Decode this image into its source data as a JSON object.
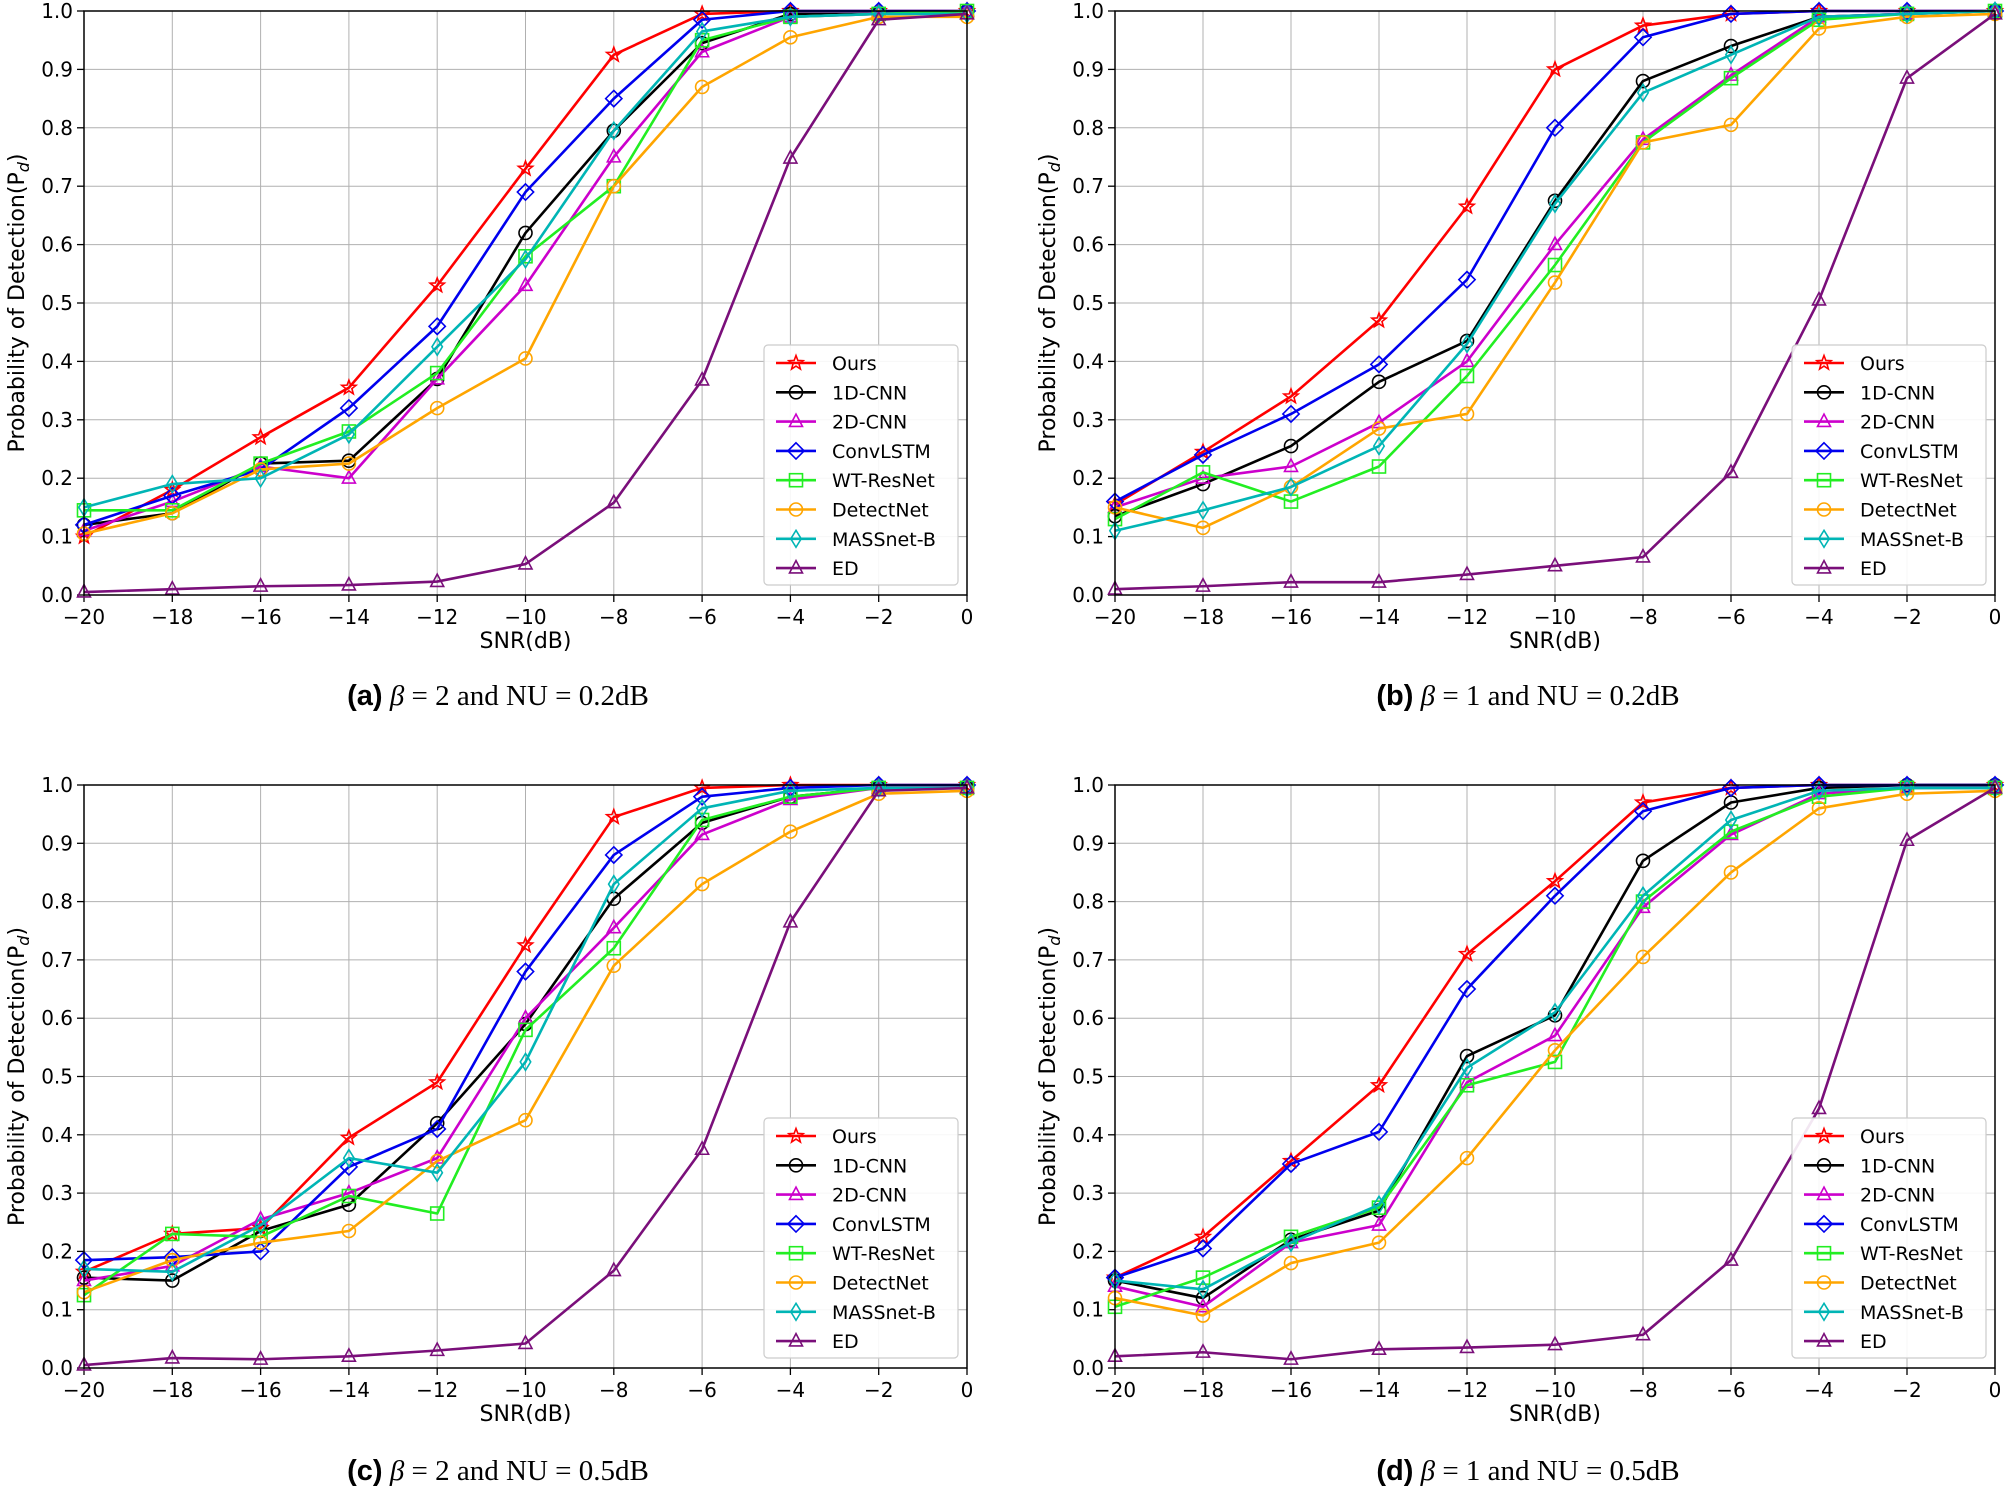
{
  "captions": [
    {
      "label": "(a)",
      "symbol": "β",
      "rest": "= 2 and NU = 0.2dB"
    },
    {
      "label": "(b)",
      "symbol": "β",
      "rest": "= 1 and NU = 0.2dB"
    },
    {
      "label": "(c)",
      "symbol": "β",
      "rest": "= 2 and NU = 0.5dB"
    },
    {
      "label": "(d)",
      "symbol": "β",
      "rest": "= 1 and NU = 0.5dB"
    }
  ],
  "series_styles": [
    {
      "name": "Ours",
      "color": "#ff0000",
      "marker": "star"
    },
    {
      "name": "1D-CNN",
      "color": "#000000",
      "marker": "circle"
    },
    {
      "name": "2D-CNN",
      "color": "#cc00cc",
      "marker": "triangle"
    },
    {
      "name": "ConvLSTM",
      "color": "#0000ee",
      "marker": "diamond"
    },
    {
      "name": "WT-ResNet",
      "color": "#22ee22",
      "marker": "square"
    },
    {
      "name": "DetectNet",
      "color": "#ffa500",
      "marker": "circle"
    },
    {
      "name": "MASSnet-B",
      "color": "#00b5b5",
      "marker": "thin-diamond"
    },
    {
      "name": "ED",
      "color": "#7a0f7a",
      "marker": "triangle"
    }
  ],
  "chart_data": [
    {
      "type": "line",
      "title": "",
      "xlabel": "SNR(dB)",
      "ylabel": "Probability of Detection(P_d)",
      "ylabel_main": "Probability of Detection(P",
      "ylabel_sub": "d",
      "ylabel_close": ")",
      "xlim": [
        -20,
        0
      ],
      "ylim": [
        0.0,
        1.0
      ],
      "xticks": [
        "−20",
        "−18",
        "−16",
        "−14",
        "−12",
        "−10",
        "−8",
        "−6",
        "−4",
        "−2",
        "0"
      ],
      "yticks": [
        "0.0",
        "0.1",
        "0.2",
        "0.3",
        "0.4",
        "0.5",
        "0.6",
        "0.7",
        "0.8",
        "0.9",
        "1.0"
      ],
      "grid": true,
      "legend": "lower-right",
      "x": [
        -20,
        -18,
        -16,
        -14,
        -12,
        -10,
        -8,
        -6,
        -4,
        -2,
        0
      ],
      "series": [
        {
          "name": "Ours",
          "values": [
            0.1,
            0.18,
            0.27,
            0.355,
            0.53,
            0.73,
            0.925,
            0.995,
            1.0,
            1.0,
            1.0
          ]
        },
        {
          "name": "1D-CNN",
          "values": [
            0.12,
            0.14,
            0.225,
            0.23,
            0.37,
            0.62,
            0.795,
            0.945,
            0.995,
            0.995,
            1.0
          ]
        },
        {
          "name": "2D-CNN",
          "values": [
            0.11,
            0.16,
            0.22,
            0.2,
            0.37,
            0.53,
            0.75,
            0.93,
            0.99,
            0.995,
            1.0
          ]
        },
        {
          "name": "ConvLSTM",
          "values": [
            0.12,
            0.17,
            0.215,
            0.32,
            0.46,
            0.69,
            0.85,
            0.985,
            1.0,
            1.0,
            1.0
          ]
        },
        {
          "name": "WT-ResNet",
          "values": [
            0.145,
            0.145,
            0.225,
            0.28,
            0.38,
            0.58,
            0.7,
            0.95,
            0.99,
            0.995,
            1.0
          ]
        },
        {
          "name": "DetectNet",
          "values": [
            0.105,
            0.14,
            0.215,
            0.225,
            0.32,
            0.405,
            0.7,
            0.87,
            0.955,
            0.99,
            0.99
          ]
        },
        {
          "name": "MASSnet-B",
          "values": [
            0.15,
            0.19,
            0.2,
            0.275,
            0.425,
            0.575,
            0.795,
            0.965,
            0.99,
            0.995,
            0.995
          ]
        },
        {
          "name": "ED",
          "values": [
            0.005,
            0.01,
            0.015,
            0.017,
            0.023,
            0.053,
            0.158,
            0.368,
            0.748,
            0.985,
            0.995
          ]
        }
      ]
    },
    {
      "type": "line",
      "title": "",
      "xlabel": "SNR(dB)",
      "ylabel": "Probability of Detection(P_d)",
      "ylabel_main": "Probability of Detection(P",
      "ylabel_sub": "d",
      "ylabel_close": ")",
      "xlim": [
        -20,
        0
      ],
      "ylim": [
        0.0,
        1.0
      ],
      "xticks": [
        "−20",
        "−18",
        "−16",
        "−14",
        "−12",
        "−10",
        "−8",
        "−6",
        "−4",
        "−2",
        "0"
      ],
      "yticks": [
        "0.0",
        "0.1",
        "0.2",
        "0.3",
        "0.4",
        "0.5",
        "0.6",
        "0.7",
        "0.8",
        "0.9",
        "1.0"
      ],
      "grid": true,
      "legend": "lower-right",
      "x": [
        -20,
        -18,
        -16,
        -14,
        -12,
        -10,
        -8,
        -6,
        -4,
        -2,
        0
      ],
      "series": [
        {
          "name": "Ours",
          "values": [
            0.155,
            0.245,
            0.34,
            0.47,
            0.665,
            0.9,
            0.975,
            0.995,
            1.0,
            1.0,
            1.0
          ]
        },
        {
          "name": "1D-CNN",
          "values": [
            0.135,
            0.19,
            0.255,
            0.365,
            0.435,
            0.675,
            0.88,
            0.94,
            0.99,
            0.995,
            1.0
          ]
        },
        {
          "name": "2D-CNN",
          "values": [
            0.15,
            0.2,
            0.22,
            0.295,
            0.4,
            0.6,
            0.78,
            0.89,
            0.99,
            0.995,
            1.0
          ]
        },
        {
          "name": "ConvLSTM",
          "values": [
            0.16,
            0.24,
            0.31,
            0.395,
            0.54,
            0.8,
            0.955,
            0.995,
            1.0,
            1.0,
            1.0
          ]
        },
        {
          "name": "WT-ResNet",
          "values": [
            0.13,
            0.21,
            0.16,
            0.22,
            0.375,
            0.565,
            0.775,
            0.885,
            0.985,
            0.995,
            1.0
          ]
        },
        {
          "name": "DetectNet",
          "values": [
            0.15,
            0.115,
            0.185,
            0.285,
            0.31,
            0.535,
            0.775,
            0.805,
            0.97,
            0.99,
            0.995
          ]
        },
        {
          "name": "MASSnet-B",
          "values": [
            0.11,
            0.145,
            0.185,
            0.255,
            0.43,
            0.67,
            0.86,
            0.925,
            0.99,
            0.995,
            1.0
          ]
        },
        {
          "name": "ED",
          "values": [
            0.01,
            0.015,
            0.022,
            0.022,
            0.035,
            0.05,
            0.065,
            0.21,
            0.505,
            0.885,
            0.995
          ]
        }
      ]
    },
    {
      "type": "line",
      "title": "",
      "xlabel": "SNR(dB)",
      "ylabel": "Probability of Detection(P_d)",
      "ylabel_main": "Probability of Detection(P",
      "ylabel_sub": "d",
      "ylabel_close": ")",
      "xlim": [
        -20,
        0
      ],
      "ylim": [
        0.0,
        1.0
      ],
      "xticks": [
        "−20",
        "−18",
        "−16",
        "−14",
        "−12",
        "−10",
        "−8",
        "−6",
        "−4",
        "−2",
        "0"
      ],
      "yticks": [
        "0.0",
        "0.1",
        "0.2",
        "0.3",
        "0.4",
        "0.5",
        "0.6",
        "0.7",
        "0.8",
        "0.9",
        "1.0"
      ],
      "grid": true,
      "legend": "lower-right",
      "x": [
        -20,
        -18,
        -16,
        -14,
        -12,
        -10,
        -8,
        -6,
        -4,
        -2,
        0
      ],
      "series": [
        {
          "name": "Ours",
          "values": [
            0.165,
            0.23,
            0.24,
            0.395,
            0.49,
            0.725,
            0.945,
            0.995,
            1.0,
            1.0,
            1.0
          ]
        },
        {
          "name": "1D-CNN",
          "values": [
            0.155,
            0.15,
            0.235,
            0.28,
            0.42,
            0.59,
            0.805,
            0.935,
            0.98,
            0.995,
            0.995
          ]
        },
        {
          "name": "2D-CNN",
          "values": [
            0.15,
            0.175,
            0.255,
            0.3,
            0.36,
            0.6,
            0.755,
            0.915,
            0.975,
            0.995,
            0.995
          ]
        },
        {
          "name": "ConvLSTM",
          "values": [
            0.185,
            0.19,
            0.2,
            0.345,
            0.41,
            0.68,
            0.88,
            0.98,
            0.995,
            1.0,
            1.0
          ]
        },
        {
          "name": "WT-ResNet",
          "values": [
            0.125,
            0.23,
            0.225,
            0.295,
            0.265,
            0.58,
            0.72,
            0.94,
            0.98,
            0.995,
            0.995
          ]
        },
        {
          "name": "DetectNet",
          "values": [
            0.13,
            0.185,
            0.215,
            0.235,
            0.355,
            0.425,
            0.69,
            0.83,
            0.92,
            0.985,
            0.99
          ]
        },
        {
          "name": "MASSnet-B",
          "values": [
            0.17,
            0.165,
            0.245,
            0.36,
            0.335,
            0.525,
            0.83,
            0.96,
            0.99,
            0.995,
            0.995
          ]
        },
        {
          "name": "ED",
          "values": [
            0.005,
            0.017,
            0.015,
            0.02,
            0.03,
            0.042,
            0.167,
            0.375,
            0.765,
            0.99,
            0.995
          ]
        }
      ]
    },
    {
      "type": "line",
      "title": "",
      "xlabel": "SNR(dB)",
      "ylabel": "Probability of Detection(P_d)",
      "ylabel_main": "Probability of Detection(P",
      "ylabel_sub": "d",
      "ylabel_close": ")",
      "xlim": [
        -20,
        0
      ],
      "ylim": [
        0.0,
        1.0
      ],
      "xticks": [
        "−20",
        "−18",
        "−16",
        "−14",
        "−12",
        "−10",
        "−8",
        "−6",
        "−4",
        "−2",
        "0"
      ],
      "yticks": [
        "0.0",
        "0.1",
        "0.2",
        "0.3",
        "0.4",
        "0.5",
        "0.6",
        "0.7",
        "0.8",
        "0.9",
        "1.0"
      ],
      "grid": true,
      "legend": "lower-right",
      "x": [
        -20,
        -18,
        -16,
        -14,
        -12,
        -10,
        -8,
        -6,
        -4,
        -2,
        0
      ],
      "series": [
        {
          "name": "Ours",
          "values": [
            0.155,
            0.225,
            0.355,
            0.485,
            0.71,
            0.835,
            0.97,
            0.995,
            1.0,
            1.0,
            1.0
          ]
        },
        {
          "name": "1D-CNN",
          "values": [
            0.15,
            0.12,
            0.22,
            0.27,
            0.535,
            0.605,
            0.87,
            0.97,
            0.995,
            1.0,
            1.0
          ]
        },
        {
          "name": "2D-CNN",
          "values": [
            0.14,
            0.105,
            0.215,
            0.245,
            0.49,
            0.57,
            0.79,
            0.915,
            0.985,
            0.995,
            0.995
          ]
        },
        {
          "name": "ConvLSTM",
          "values": [
            0.155,
            0.205,
            0.35,
            0.405,
            0.65,
            0.81,
            0.955,
            0.995,
            1.0,
            1.0,
            1.0
          ]
        },
        {
          "name": "WT-ResNet",
          "values": [
            0.105,
            0.155,
            0.225,
            0.275,
            0.485,
            0.525,
            0.8,
            0.92,
            0.98,
            0.995,
            0.995
          ]
        },
        {
          "name": "DetectNet",
          "values": [
            0.12,
            0.09,
            0.18,
            0.215,
            0.36,
            0.545,
            0.705,
            0.85,
            0.96,
            0.985,
            0.99
          ]
        },
        {
          "name": "MASSnet-B",
          "values": [
            0.15,
            0.135,
            0.215,
            0.28,
            0.515,
            0.61,
            0.81,
            0.94,
            0.99,
            0.995,
            0.995
          ]
        },
        {
          "name": "ED",
          "values": [
            0.02,
            0.027,
            0.015,
            0.032,
            0.035,
            0.04,
            0.057,
            0.185,
            0.445,
            0.905,
            0.995
          ]
        }
      ]
    }
  ]
}
